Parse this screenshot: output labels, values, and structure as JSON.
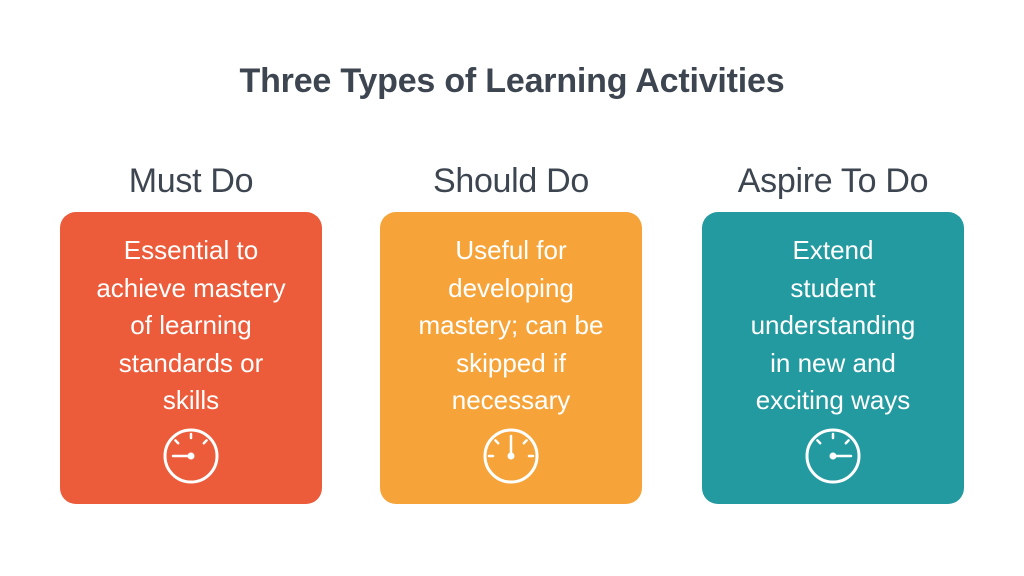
{
  "title": "Three Types of Learning Activities",
  "columns": [
    {
      "heading": "Must Do",
      "text": "Essential to\nachieve mastery\nof learning\nstandards or\nskills",
      "icon": "gauge-icon",
      "needle": "left",
      "color": "#ec5b3a"
    },
    {
      "heading": "Should Do",
      "text": "Useful for\ndeveloping\nmastery; can be\nskipped if\nnecessary",
      "icon": "gauge-icon",
      "needle": "up",
      "color": "#f6a43a"
    },
    {
      "heading": "Aspire To Do",
      "text": "Extend\nstudent\nunderstanding\nin new and\nexciting ways",
      "icon": "gauge-icon",
      "needle": "right",
      "color": "#239aa0"
    }
  ]
}
